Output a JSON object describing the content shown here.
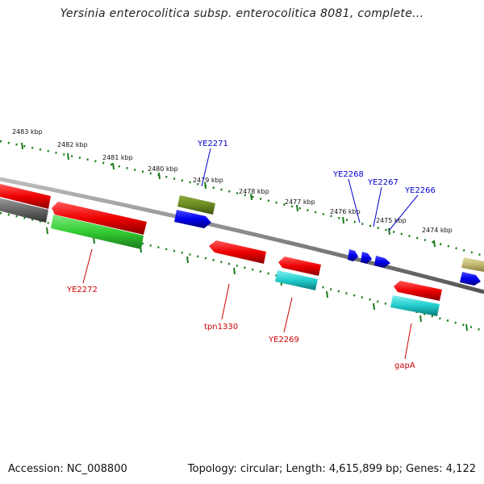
{
  "title": "Yersinia enterocolitica subsp. enterocolitica 8081, complete...",
  "footer": {
    "accession": "Accession: NC_008800",
    "summary": "Topology: circular; Length: 4,615,899 bp; Genes: 4,122"
  },
  "colors": {
    "backbone": "#8a8a8a",
    "tick": "#1a7a1a",
    "plus_label": "#0000cc",
    "minus_label": "#cc0000"
  },
  "kbp_labels": [
    "2483 kbp",
    "2482 kbp",
    "2481 kbp",
    "2480 kbp",
    "2479 kbp",
    "2478 kbp",
    "2477 kbp",
    "2476 kbp",
    "2475 kbp",
    "2474 kbp"
  ],
  "gene_labels": [
    {
      "text": "YE2271",
      "strand": "plus"
    },
    {
      "text": "YE2268",
      "strand": "plus"
    },
    {
      "text": "YE2267",
      "strand": "plus"
    },
    {
      "text": "YE2266",
      "strand": "plus"
    },
    {
      "text": "YE2272",
      "strand": "minus"
    },
    {
      "text": "tpn1330",
      "strand": "minus"
    },
    {
      "text": "YE2269",
      "strand": "minus"
    },
    {
      "text": "gapA",
      "strand": "minus"
    }
  ]
}
